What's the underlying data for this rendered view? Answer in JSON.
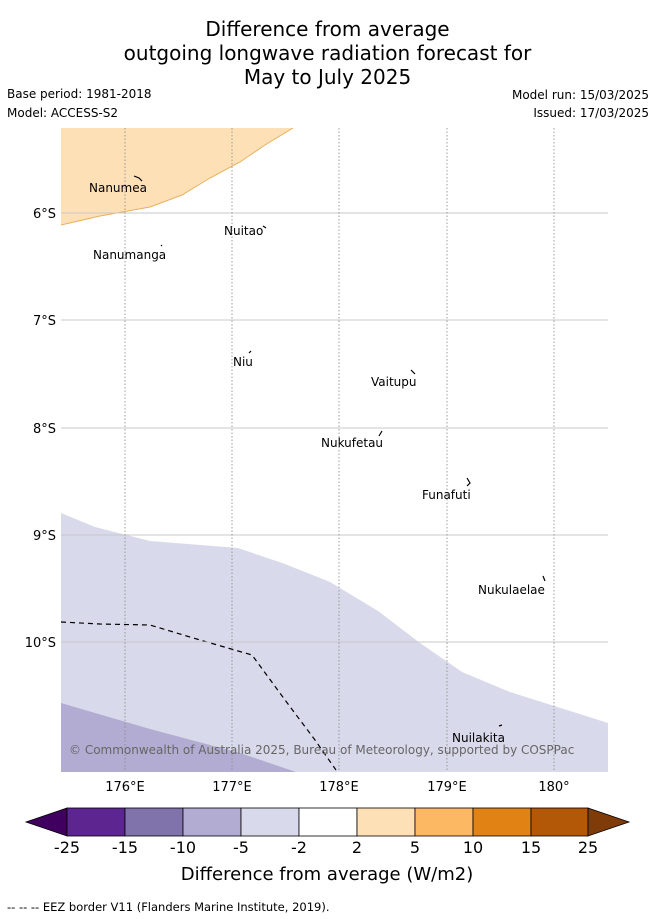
{
  "title": {
    "line1": "Difference from average",
    "line2": "outgoing longwave radiation forecast for",
    "line3": "May to July 2025"
  },
  "meta": {
    "base_period": "Base period: 1981-2018",
    "model": "Model: ACCESS-S2",
    "model_run": "Model run: 15/03/2025",
    "issued": "Issued: 17/03/2025"
  },
  "map": {
    "lat_labels": [
      "6°S",
      "7°S",
      "8°S",
      "9°S",
      "10°S"
    ],
    "lon_labels": [
      "176°E",
      "177°E",
      "178°E",
      "179°E",
      "180°"
    ],
    "islands": [
      "Nanumea",
      "Nuitao",
      "Nanumanga",
      "Niu",
      "Vaitupu",
      "Nukufetau",
      "Funafuti",
      "Nukulaelae",
      "Nuilakita"
    ],
    "copyright": "© Commonwealth of Australia 2025, Bureau of Meteorology, supported by COSPPac",
    "colors": {
      "anom_pos_2_5": "#fde0b6",
      "anom_neg_2_5": "#d8d9eb",
      "anom_neg_5_10": "#b2abd2",
      "grid": "#c8c8c8",
      "lon_grid": "#888888"
    }
  },
  "colorbar": {
    "ticks": [
      "-25",
      "-15",
      "-10",
      "-5",
      "-2",
      "2",
      "5",
      "10",
      "15",
      "25"
    ],
    "colors": [
      "#3f0060",
      "#5c2590",
      "#8073ac",
      "#b2abd2",
      "#d8daeb",
      "#ffffff",
      "#fee0b6",
      "#fdb863",
      "#e08214",
      "#b35806",
      "#7f3b08"
    ],
    "label": "Difference from average (W/m2)"
  },
  "footer": "-- -- -- EEZ border V11 (Flanders Marine Institute, 2019)."
}
